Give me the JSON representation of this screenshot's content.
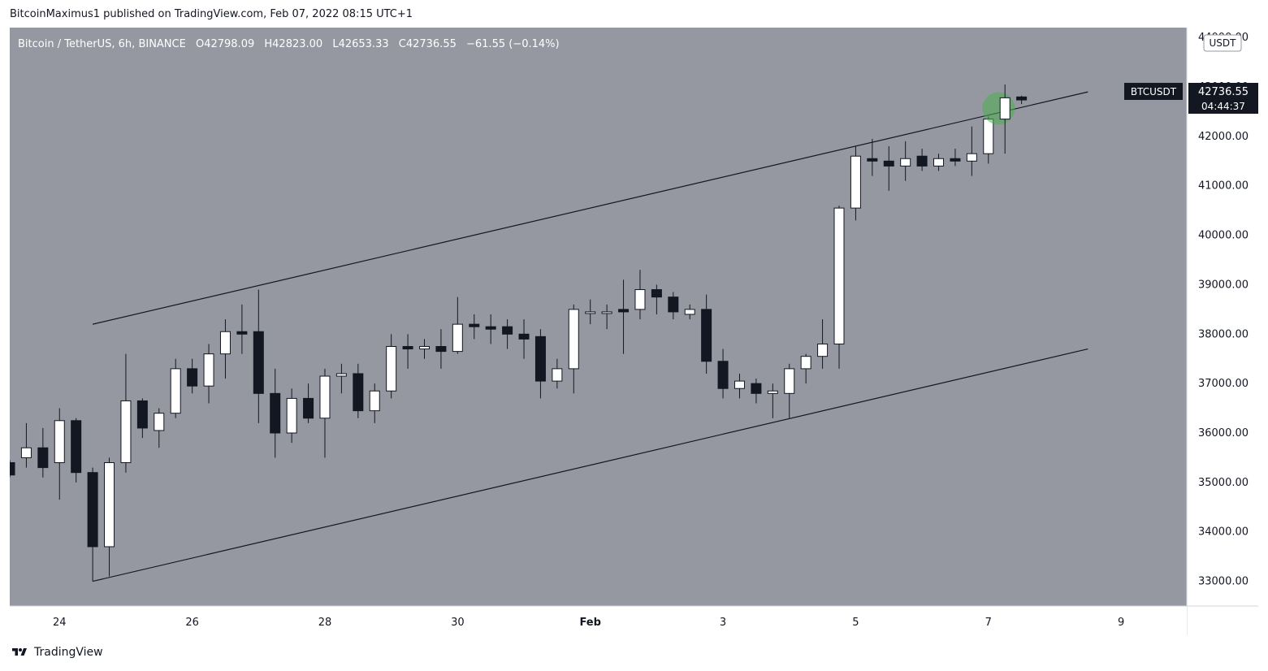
{
  "header": {
    "publisher_line": "BitcoinMaximus1 published on TradingView.com, Feb 07, 2022 08:15 UTC+1"
  },
  "legend": {
    "symbol": "Bitcoin / TetherUS, 6h, BINANCE",
    "o_label": "O",
    "o_value": "42798.09",
    "h_label": "H",
    "h_value": "42823.00",
    "l_label": "L",
    "l_value": "42653.33",
    "c_label": "C",
    "c_value": "42736.55",
    "change": "−61.55 (−0.14%)"
  },
  "price_axis": {
    "currency": "USDT",
    "ticks": [
      "44000.00",
      "43000.00",
      "42000.00",
      "41000.00",
      "40000.00",
      "39000.00",
      "38000.00",
      "37000.00",
      "36000.00",
      "35000.00",
      "34000.00",
      "33000.00"
    ],
    "tag_symbol": "BTCUSDT",
    "tag_price": "42736.55",
    "tag_countdown": "04:44:37"
  },
  "time_axis": {
    "labels": [
      "24",
      "26",
      "28",
      "30",
      "Feb",
      "3",
      "5",
      "7",
      "9"
    ]
  },
  "footer": {
    "brand": "TradingView"
  },
  "colors": {
    "background": "#9598a1",
    "bull": "#ffffff",
    "bear": "#131722",
    "line": "#131722",
    "highlight": "#4caf50",
    "tag_bg": "#131722",
    "axis_bg": "#ffffff"
  },
  "chart_data": {
    "type": "candlestick",
    "timeframe": "6h",
    "ylim": [
      32500,
      44200
    ],
    "y_ticks": [
      33000,
      34000,
      35000,
      36000,
      37000,
      38000,
      39000,
      40000,
      41000,
      42000,
      43000,
      44000
    ],
    "x_tick_index": [
      3,
      11,
      19,
      27,
      35,
      43,
      51,
      59,
      67
    ],
    "channel": {
      "upper": [
        [
          5,
          38200
        ],
        [
          65,
          42900
        ]
      ],
      "lower": [
        [
          5,
          33000
        ],
        [
          65,
          37700
        ]
      ]
    },
    "highlight_candle": 60,
    "candles": [
      [
        35400,
        35450,
        35100,
        35150
      ],
      [
        35500,
        36200,
        35300,
        35700
      ],
      [
        35700,
        36100,
        35100,
        35300
      ],
      [
        35400,
        36500,
        34650,
        36250
      ],
      [
        36250,
        36300,
        35000,
        35200
      ],
      [
        35200,
        35300,
        33000,
        33700
      ],
      [
        33700,
        35500,
        33100,
        35400
      ],
      [
        35400,
        37600,
        35200,
        36650
      ],
      [
        36650,
        36700,
        35900,
        36100
      ],
      [
        36050,
        36500,
        35700,
        36400
      ],
      [
        36400,
        37500,
        36300,
        37300
      ],
      [
        37300,
        37500,
        36800,
        36950
      ],
      [
        36950,
        37800,
        36600,
        37600
      ],
      [
        37600,
        38300,
        37100,
        38050
      ],
      [
        38050,
        38600,
        37600,
        38000
      ],
      [
        38050,
        38900,
        36200,
        36800
      ],
      [
        36800,
        37300,
        35500,
        36000
      ],
      [
        36000,
        36900,
        35800,
        36700
      ],
      [
        36700,
        37000,
        36200,
        36300
      ],
      [
        36300,
        37300,
        35500,
        37150
      ],
      [
        37150,
        37400,
        36800,
        37200
      ],
      [
        37200,
        37400,
        36300,
        36450
      ],
      [
        36450,
        37000,
        36200,
        36850
      ],
      [
        36850,
        38000,
        36700,
        37750
      ],
      [
        37750,
        38000,
        37300,
        37700
      ],
      [
        37700,
        37900,
        37500,
        37750
      ],
      [
        37750,
        38100,
        37300,
        37650
      ],
      [
        37650,
        38750,
        37600,
        38200
      ],
      [
        38200,
        38400,
        37900,
        38150
      ],
      [
        38150,
        38400,
        37800,
        38100
      ],
      [
        38150,
        38300,
        37700,
        38000
      ],
      [
        38000,
        38300,
        37500,
        37900
      ],
      [
        37950,
        38100,
        36700,
        37050
      ],
      [
        37050,
        37500,
        36900,
        37300
      ],
      [
        37300,
        38600,
        36800,
        38500
      ],
      [
        38450,
        38700,
        38200,
        38450
      ],
      [
        38450,
        38600,
        38100,
        38450
      ],
      [
        38500,
        39100,
        37600,
        38450
      ],
      [
        38500,
        39300,
        38300,
        38900
      ],
      [
        38900,
        39000,
        38400,
        38750
      ],
      [
        38750,
        38850,
        38300,
        38450
      ],
      [
        38400,
        38600,
        38300,
        38500
      ],
      [
        38500,
        38800,
        37200,
        37450
      ],
      [
        37450,
        37700,
        36700,
        36900
      ],
      [
        36900,
        37200,
        36700,
        37050
      ],
      [
        37000,
        37100,
        36600,
        36800
      ],
      [
        36800,
        37000,
        36300,
        36850
      ],
      [
        36800,
        37400,
        36300,
        37300
      ],
      [
        37300,
        37600,
        37000,
        37550
      ],
      [
        37550,
        38300,
        37300,
        37800
      ],
      [
        37800,
        40600,
        37300,
        40550
      ],
      [
        40550,
        41800,
        40300,
        41600
      ],
      [
        41550,
        41950,
        41200,
        41500
      ],
      [
        41500,
        41800,
        40900,
        41400
      ],
      [
        41400,
        41900,
        41100,
        41550
      ],
      [
        41600,
        41750,
        41300,
        41400
      ],
      [
        41400,
        41650,
        41300,
        41550
      ],
      [
        41550,
        41750,
        41400,
        41500
      ],
      [
        41500,
        42200,
        41200,
        41650
      ],
      [
        41650,
        42400,
        41450,
        42350
      ],
      [
        42350,
        43050,
        41650,
        42780
      ],
      [
        42798.09,
        42823,
        42653.33,
        42736.55
      ]
    ]
  }
}
